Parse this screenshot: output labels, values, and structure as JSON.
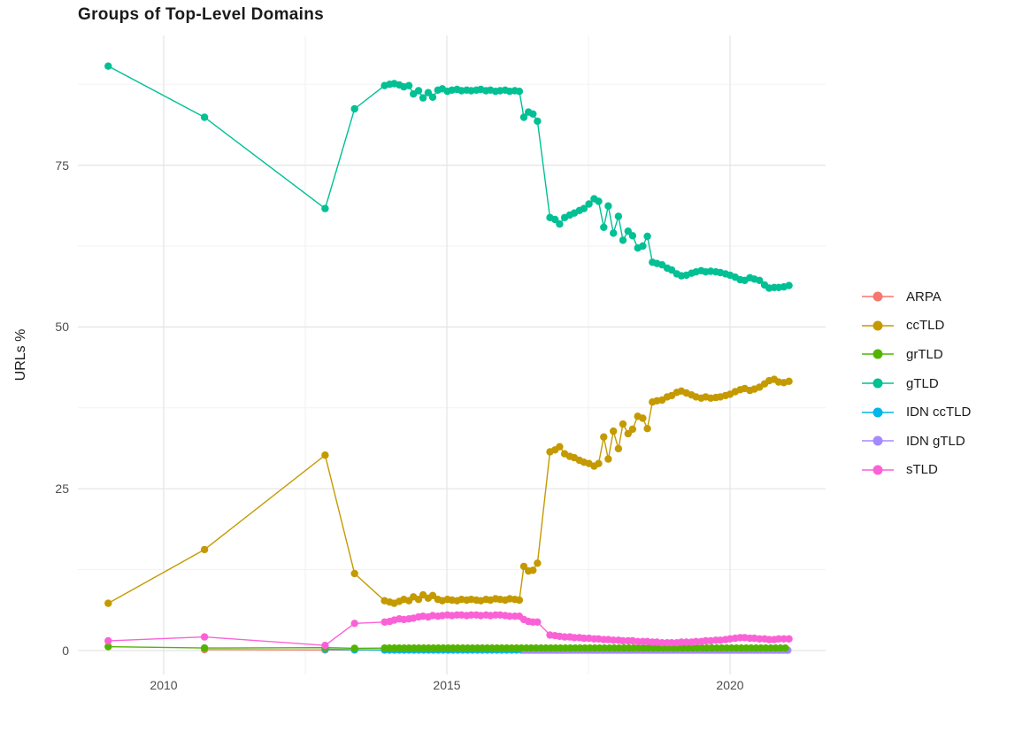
{
  "title": "Groups of Top-Level Domains",
  "axes": {
    "x": {
      "ticks": [
        "2010",
        "2015",
        "2020"
      ]
    },
    "y": {
      "title": "URLs %",
      "ticks": [
        "0",
        "25",
        "50",
        "75"
      ]
    }
  },
  "chart_data": {
    "type": "line",
    "title": "Groups of Top-Level Domains",
    "xlabel": "",
    "ylabel": "URLs %",
    "xlim": [
      2008.5,
      2021.7
    ],
    "ylim": [
      -3.5,
      95
    ],
    "x_major_ticks": [
      2010,
      2015,
      2020
    ],
    "x_minor_gridlines": [
      2012.5,
      2017.5
    ],
    "y_major_ticks": [
      0,
      25,
      50,
      75
    ],
    "y_minor_gridlines": [
      12.5,
      37.5,
      62.5,
      87.5
    ],
    "grid": "on",
    "legend_position": "right",
    "series": [
      {
        "name": "ARPA",
        "color": "#F8766D",
        "points": [
          [
            2010.72,
            0.15
          ],
          [
            2012.85,
            0.1
          ],
          [
            2013.37,
            0.1
          ]
        ],
        "run": {
          "from": 2013.9,
          "to": 2021.04,
          "step": 0.0863,
          "value": 0.08
        }
      },
      {
        "name": "ccTLD",
        "color": "#C49A00",
        "points": [
          [
            2009.02,
            7.3
          ],
          [
            2010.72,
            15.6
          ],
          [
            2012.85,
            30.2
          ],
          [
            2013.37,
            11.9
          ],
          [
            2013.9,
            7.7
          ],
          [
            2013.99,
            7.5
          ],
          [
            2014.07,
            7.3
          ],
          [
            2014.16,
            7.6
          ],
          [
            2014.24,
            7.9
          ],
          [
            2014.33,
            7.7
          ],
          [
            2014.41,
            8.3
          ],
          [
            2014.5,
            7.9
          ],
          [
            2014.58,
            8.6
          ],
          [
            2014.67,
            8.1
          ],
          [
            2014.75,
            8.5
          ],
          [
            2014.84,
            7.9
          ],
          [
            2014.92,
            7.7
          ],
          [
            2015.01,
            7.9
          ],
          [
            2015.09,
            7.8
          ],
          [
            2015.18,
            7.7
          ],
          [
            2015.26,
            7.9
          ],
          [
            2015.35,
            7.8
          ],
          [
            2015.43,
            7.9
          ],
          [
            2015.52,
            7.8
          ],
          [
            2015.6,
            7.7
          ],
          [
            2015.69,
            7.9
          ],
          [
            2015.77,
            7.8
          ],
          [
            2015.86,
            8.0
          ],
          [
            2015.94,
            7.9
          ],
          [
            2016.03,
            7.8
          ],
          [
            2016.11,
            8.0
          ],
          [
            2016.2,
            7.9
          ],
          [
            2016.28,
            7.8
          ],
          [
            2016.36,
            13.0
          ],
          [
            2016.44,
            12.3
          ],
          [
            2016.52,
            12.4
          ],
          [
            2016.6,
            13.5
          ],
          [
            2016.82,
            30.7
          ],
          [
            2016.91,
            31.0
          ],
          [
            2016.99,
            31.5
          ],
          [
            2017.08,
            30.4
          ],
          [
            2017.17,
            30.0
          ],
          [
            2017.25,
            29.8
          ],
          [
            2017.34,
            29.4
          ],
          [
            2017.42,
            29.1
          ],
          [
            2017.51,
            28.9
          ],
          [
            2017.6,
            28.5
          ],
          [
            2017.68,
            28.9
          ],
          [
            2017.77,
            33.0
          ],
          [
            2017.85,
            29.6
          ],
          [
            2017.94,
            33.9
          ],
          [
            2018.03,
            31.2
          ],
          [
            2018.11,
            35.0
          ],
          [
            2018.2,
            33.5
          ],
          [
            2018.28,
            34.2
          ],
          [
            2018.37,
            36.2
          ],
          [
            2018.46,
            35.9
          ],
          [
            2018.54,
            34.3
          ],
          [
            2018.63,
            38.4
          ],
          [
            2018.71,
            38.6
          ],
          [
            2018.8,
            38.7
          ],
          [
            2018.89,
            39.2
          ],
          [
            2018.97,
            39.4
          ],
          [
            2019.06,
            39.9
          ],
          [
            2019.14,
            40.1
          ],
          [
            2019.23,
            39.8
          ],
          [
            2019.32,
            39.5
          ],
          [
            2019.4,
            39.2
          ],
          [
            2019.49,
            39.0
          ],
          [
            2019.57,
            39.2
          ],
          [
            2019.66,
            39.0
          ],
          [
            2019.75,
            39.1
          ],
          [
            2019.83,
            39.2
          ],
          [
            2019.92,
            39.4
          ],
          [
            2020.0,
            39.6
          ],
          [
            2020.09,
            40.0
          ],
          [
            2020.18,
            40.3
          ],
          [
            2020.26,
            40.5
          ],
          [
            2020.35,
            40.2
          ],
          [
            2020.43,
            40.4
          ],
          [
            2020.52,
            40.7
          ],
          [
            2020.61,
            41.2
          ],
          [
            2020.69,
            41.7
          ],
          [
            2020.78,
            41.9
          ],
          [
            2020.86,
            41.5
          ],
          [
            2020.95,
            41.4
          ],
          [
            2021.04,
            41.6
          ]
        ]
      },
      {
        "name": "grTLD",
        "color": "#53B400",
        "points": [
          [
            2009.02,
            0.6
          ],
          [
            2010.72,
            0.4
          ],
          [
            2012.85,
            0.45
          ],
          [
            2013.37,
            0.35
          ]
        ],
        "run": {
          "from": 2013.9,
          "to": 2021.04,
          "step": 0.0863,
          "value": 0.38
        }
      },
      {
        "name": "gTLD",
        "color": "#00C094",
        "points": [
          [
            2009.02,
            90.3
          ],
          [
            2010.72,
            82.4
          ],
          [
            2012.85,
            68.3
          ],
          [
            2013.37,
            83.7
          ],
          [
            2013.9,
            87.3
          ],
          [
            2013.99,
            87.5
          ],
          [
            2014.07,
            87.6
          ],
          [
            2014.16,
            87.4
          ],
          [
            2014.24,
            87.1
          ],
          [
            2014.33,
            87.3
          ],
          [
            2014.41,
            86.0
          ],
          [
            2014.5,
            86.5
          ],
          [
            2014.58,
            85.4
          ],
          [
            2014.67,
            86.2
          ],
          [
            2014.75,
            85.5
          ],
          [
            2014.84,
            86.6
          ],
          [
            2014.92,
            86.8
          ],
          [
            2015.01,
            86.4
          ],
          [
            2015.09,
            86.6
          ],
          [
            2015.18,
            86.7
          ],
          [
            2015.26,
            86.5
          ],
          [
            2015.35,
            86.6
          ],
          [
            2015.43,
            86.5
          ],
          [
            2015.52,
            86.6
          ],
          [
            2015.6,
            86.7
          ],
          [
            2015.69,
            86.5
          ],
          [
            2015.77,
            86.6
          ],
          [
            2015.86,
            86.4
          ],
          [
            2015.94,
            86.5
          ],
          [
            2016.03,
            86.6
          ],
          [
            2016.11,
            86.4
          ],
          [
            2016.2,
            86.5
          ],
          [
            2016.28,
            86.4
          ],
          [
            2016.36,
            82.4
          ],
          [
            2016.44,
            83.2
          ],
          [
            2016.52,
            82.9
          ],
          [
            2016.6,
            81.8
          ],
          [
            2016.82,
            66.9
          ],
          [
            2016.91,
            66.6
          ],
          [
            2016.99,
            65.9
          ],
          [
            2017.08,
            66.9
          ],
          [
            2017.17,
            67.3
          ],
          [
            2017.25,
            67.6
          ],
          [
            2017.34,
            68.0
          ],
          [
            2017.42,
            68.3
          ],
          [
            2017.51,
            69.0
          ],
          [
            2017.6,
            69.8
          ],
          [
            2017.68,
            69.4
          ],
          [
            2017.77,
            65.4
          ],
          [
            2017.85,
            68.7
          ],
          [
            2017.94,
            64.5
          ],
          [
            2018.03,
            67.1
          ],
          [
            2018.11,
            63.4
          ],
          [
            2018.2,
            64.8
          ],
          [
            2018.28,
            64.1
          ],
          [
            2018.37,
            62.2
          ],
          [
            2018.46,
            62.5
          ],
          [
            2018.54,
            64.0
          ],
          [
            2018.63,
            60.0
          ],
          [
            2018.71,
            59.8
          ],
          [
            2018.8,
            59.6
          ],
          [
            2018.89,
            59.1
          ],
          [
            2018.97,
            58.8
          ],
          [
            2019.06,
            58.2
          ],
          [
            2019.14,
            57.9
          ],
          [
            2019.23,
            58.0
          ],
          [
            2019.32,
            58.3
          ],
          [
            2019.4,
            58.5
          ],
          [
            2019.49,
            58.7
          ],
          [
            2019.57,
            58.5
          ],
          [
            2019.66,
            58.6
          ],
          [
            2019.75,
            58.5
          ],
          [
            2019.83,
            58.4
          ],
          [
            2019.92,
            58.2
          ],
          [
            2020.0,
            58.0
          ],
          [
            2020.09,
            57.7
          ],
          [
            2020.18,
            57.3
          ],
          [
            2020.26,
            57.2
          ],
          [
            2020.35,
            57.6
          ],
          [
            2020.43,
            57.4
          ],
          [
            2020.52,
            57.2
          ],
          [
            2020.61,
            56.5
          ],
          [
            2020.69,
            56.0
          ],
          [
            2020.78,
            56.1
          ],
          [
            2020.86,
            56.1
          ],
          [
            2020.95,
            56.2
          ],
          [
            2021.04,
            56.4
          ]
        ]
      },
      {
        "name": "IDN ccTLD",
        "color": "#00B6EB",
        "points": [
          [
            2012.85,
            0.2
          ],
          [
            2013.37,
            0.12
          ]
        ],
        "run": {
          "from": 2013.9,
          "to": 2021.04,
          "step": 0.0863,
          "value": 0.1
        }
      },
      {
        "name": "IDN gTLD",
        "color": "#A58AFF",
        "points": [],
        "run": {
          "from": 2016.36,
          "to": 2021.04,
          "step": 0.0863,
          "value": 0.05
        }
      },
      {
        "name": "sTLD",
        "color": "#FB61D7",
        "points": [
          [
            2009.02,
            1.5
          ],
          [
            2010.72,
            2.1
          ],
          [
            2012.85,
            0.8
          ],
          [
            2013.37,
            4.2
          ],
          [
            2013.9,
            4.4
          ],
          [
            2013.99,
            4.5
          ],
          [
            2014.07,
            4.7
          ],
          [
            2014.16,
            4.9
          ],
          [
            2014.24,
            4.8
          ],
          [
            2014.33,
            4.9
          ],
          [
            2014.41,
            5.0
          ],
          [
            2014.5,
            5.2
          ],
          [
            2014.58,
            5.3
          ],
          [
            2014.67,
            5.2
          ],
          [
            2014.75,
            5.4
          ],
          [
            2014.84,
            5.3
          ],
          [
            2014.92,
            5.4
          ],
          [
            2015.01,
            5.5
          ],
          [
            2015.09,
            5.4
          ],
          [
            2015.18,
            5.5
          ],
          [
            2015.26,
            5.5
          ],
          [
            2015.35,
            5.4
          ],
          [
            2015.43,
            5.5
          ],
          [
            2015.52,
            5.5
          ],
          [
            2015.6,
            5.4
          ],
          [
            2015.69,
            5.5
          ],
          [
            2015.77,
            5.4
          ],
          [
            2015.86,
            5.5
          ],
          [
            2015.94,
            5.5
          ],
          [
            2016.03,
            5.4
          ],
          [
            2016.11,
            5.3
          ],
          [
            2016.2,
            5.3
          ],
          [
            2016.28,
            5.3
          ],
          [
            2016.36,
            4.8
          ],
          [
            2016.44,
            4.5
          ],
          [
            2016.52,
            4.4
          ],
          [
            2016.6,
            4.4
          ],
          [
            2016.82,
            2.4
          ],
          [
            2016.91,
            2.3
          ],
          [
            2016.99,
            2.2
          ],
          [
            2017.08,
            2.1
          ],
          [
            2017.17,
            2.1
          ],
          [
            2017.25,
            2.0
          ],
          [
            2017.34,
            2.0
          ],
          [
            2017.42,
            1.9
          ],
          [
            2017.51,
            1.9
          ],
          [
            2017.6,
            1.8
          ],
          [
            2017.68,
            1.8
          ],
          [
            2017.77,
            1.7
          ],
          [
            2017.85,
            1.7
          ],
          [
            2017.94,
            1.6
          ],
          [
            2018.03,
            1.6
          ],
          [
            2018.11,
            1.5
          ],
          [
            2018.2,
            1.5
          ],
          [
            2018.28,
            1.5
          ],
          [
            2018.37,
            1.4
          ],
          [
            2018.46,
            1.4
          ],
          [
            2018.54,
            1.4
          ],
          [
            2018.63,
            1.3
          ],
          [
            2018.71,
            1.3
          ],
          [
            2018.8,
            1.2
          ],
          [
            2018.89,
            1.2
          ],
          [
            2018.97,
            1.2
          ],
          [
            2019.06,
            1.2
          ],
          [
            2019.14,
            1.3
          ],
          [
            2019.23,
            1.3
          ],
          [
            2019.32,
            1.3
          ],
          [
            2019.4,
            1.4
          ],
          [
            2019.49,
            1.4
          ],
          [
            2019.57,
            1.5
          ],
          [
            2019.66,
            1.5
          ],
          [
            2019.75,
            1.6
          ],
          [
            2019.83,
            1.6
          ],
          [
            2019.92,
            1.7
          ],
          [
            2020.0,
            1.8
          ],
          [
            2020.09,
            1.9
          ],
          [
            2020.18,
            2.0
          ],
          [
            2020.26,
            2.0
          ],
          [
            2020.35,
            1.9
          ],
          [
            2020.43,
            1.9
          ],
          [
            2020.52,
            1.8
          ],
          [
            2020.61,
            1.8
          ],
          [
            2020.69,
            1.7
          ],
          [
            2020.78,
            1.7
          ],
          [
            2020.86,
            1.8
          ],
          [
            2020.95,
            1.8
          ],
          [
            2021.04,
            1.8
          ]
        ]
      }
    ]
  }
}
